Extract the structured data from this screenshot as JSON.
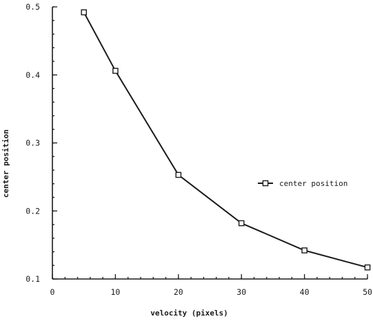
{
  "chart_data": {
    "type": "line",
    "title": "",
    "xlabel": "velocity (pixels)",
    "ylabel": "center position",
    "xlim": [
      0,
      50
    ],
    "ylim": [
      0.1,
      0.5
    ],
    "x_ticks": [
      0,
      10,
      20,
      30,
      40,
      50
    ],
    "x_tick_labels": [
      "0",
      "10",
      "20",
      "30",
      "40",
      "50"
    ],
    "y_ticks": [
      0.1,
      0.2,
      0.3,
      0.4,
      0.5
    ],
    "y_tick_labels": [
      "0.1",
      "0.2",
      "0.3",
      "0.4",
      "0.5"
    ],
    "x_minor_step": 2,
    "y_minor_step": 0.02,
    "grid": false,
    "legend_position": "right",
    "series": [
      {
        "name": "center position",
        "marker": "open-square",
        "color": "#1a1a1a",
        "x": [
          5,
          10,
          20,
          30,
          40,
          50
        ],
        "y": [
          0.492,
          0.406,
          0.253,
          0.182,
          0.142,
          0.117
        ]
      }
    ]
  }
}
